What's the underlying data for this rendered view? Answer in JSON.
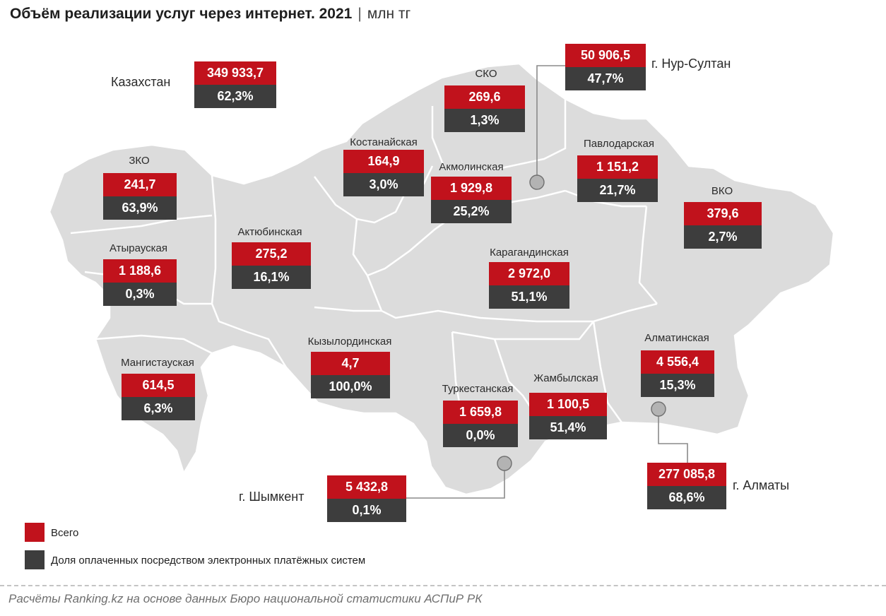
{
  "title": {
    "main": "Объём реализации услуг через интернет. 2021",
    "separator": "|",
    "unit": "млн тг"
  },
  "colors": {
    "total": "#c1121c",
    "share": "#3d3d3d",
    "map": "#dcdcdc"
  },
  "kazakhstan": {
    "name": "Казахстан",
    "value": "349 933,7",
    "share": "62,3%"
  },
  "regions": {
    "sko": {
      "name": "СКО",
      "value": "269,6",
      "share": "1,3%"
    },
    "nursultan": {
      "name": "г. Нур-Султан",
      "value": "50 906,5",
      "share": "47,7%"
    },
    "kostanay": {
      "name": "Костанайская",
      "value": "164,9",
      "share": "3,0%"
    },
    "akmola": {
      "name": "Акмолинская",
      "value": "1 929,8",
      "share": "25,2%"
    },
    "pavlodar": {
      "name": "Павлодарская",
      "value": "1 151,2",
      "share": "21,7%"
    },
    "zko": {
      "name": "ЗКО",
      "value": "241,7",
      "share": "63,9%"
    },
    "vko": {
      "name": "ВКО",
      "value": "379,6",
      "share": "2,7%"
    },
    "aktobe": {
      "name": "Актюбинская",
      "value": "275,2",
      "share": "16,1%"
    },
    "atyrau": {
      "name": "Атырауская",
      "value": "1 188,6",
      "share": "0,3%"
    },
    "karaganda": {
      "name": "Карагандинская",
      "value": "2 972,0",
      "share": "51,1%"
    },
    "kyzylorda": {
      "name": "Кызылординская",
      "value": "4,7",
      "share": "100,0%"
    },
    "almaty_obl": {
      "name": "Алматинская",
      "value": "4 556,4",
      "share": "15,3%"
    },
    "mangystau": {
      "name": "Мангистауская",
      "value": "614,5",
      "share": "6,3%"
    },
    "zhambyl": {
      "name": "Жамбылская",
      "value": "1 100,5",
      "share": "51,4%"
    },
    "turkestan": {
      "name": "Туркестанская",
      "value": "1 659,8",
      "share": "0,0%"
    },
    "almaty_city": {
      "name": "г. Алматы",
      "value": "277 085,8",
      "share": "68,6%"
    },
    "shymkent": {
      "name": "г. Шымкент",
      "value": "5 432,8",
      "share": "0,1%"
    }
  },
  "legend": {
    "total_label": "Всего",
    "share_label": "Доля оплаченных посредством электронных платёжных систем"
  },
  "source": "Расчёты Ranking.kz на основе данных Бюро национальной статистики АСПиР РК"
}
